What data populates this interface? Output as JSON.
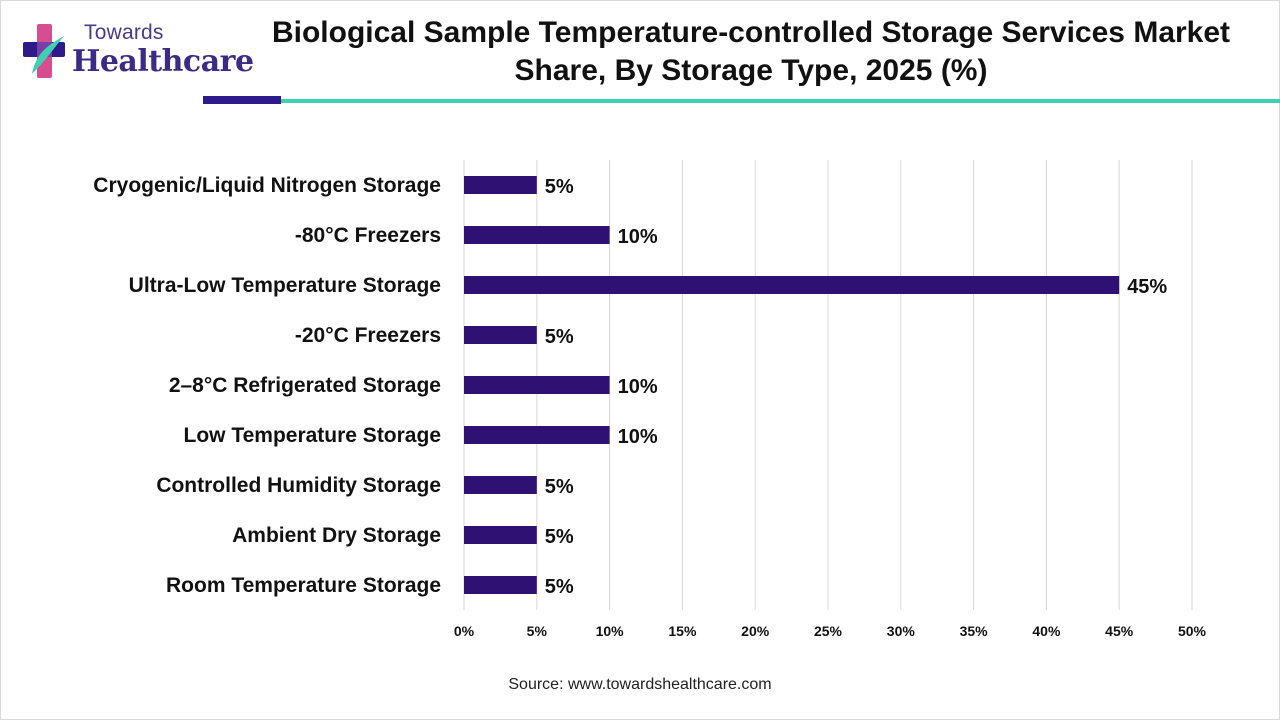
{
  "brand": {
    "logo_small": "Towards",
    "logo_big": "Healthcare",
    "colors": {
      "purple": "#2e1a8a",
      "teal": "#3fd0b3",
      "pink": "#d64e8f"
    }
  },
  "chart_data": {
    "type": "bar",
    "orientation": "horizontal",
    "title": "Biological Sample Temperature-controlled Storage Services Market Share, By Storage Type, 2025 (%)",
    "categories": [
      "Cryogenic/Liquid Nitrogen Storage",
      "-80°C Freezers",
      "Ultra-Low Temperature Storage",
      "-20°C Freezers",
      "2–8°C Refrigerated Storage",
      "Low Temperature Storage",
      "Controlled Humidity Storage",
      "Ambient Dry Storage",
      "Room Temperature Storage"
    ],
    "values": [
      5,
      10,
      45,
      5,
      10,
      10,
      5,
      5,
      5
    ],
    "data_labels": [
      "5%",
      "10%",
      "45%",
      "5%",
      "10%",
      "10%",
      "5%",
      "5%",
      "5%"
    ],
    "xlim": [
      0,
      50
    ],
    "xticks": [
      0,
      5,
      10,
      15,
      20,
      25,
      30,
      35,
      40,
      45,
      50
    ],
    "xtick_labels": [
      "0%",
      "5%",
      "10%",
      "15%",
      "20%",
      "25%",
      "30%",
      "35%",
      "40%",
      "45%",
      "50%"
    ],
    "xlabel": "",
    "ylabel": "",
    "grid": "vertical",
    "bar_color": "#2e1172",
    "grid_color": "#d9d9d9"
  },
  "source": "Source: www.towardshealthcare.com"
}
